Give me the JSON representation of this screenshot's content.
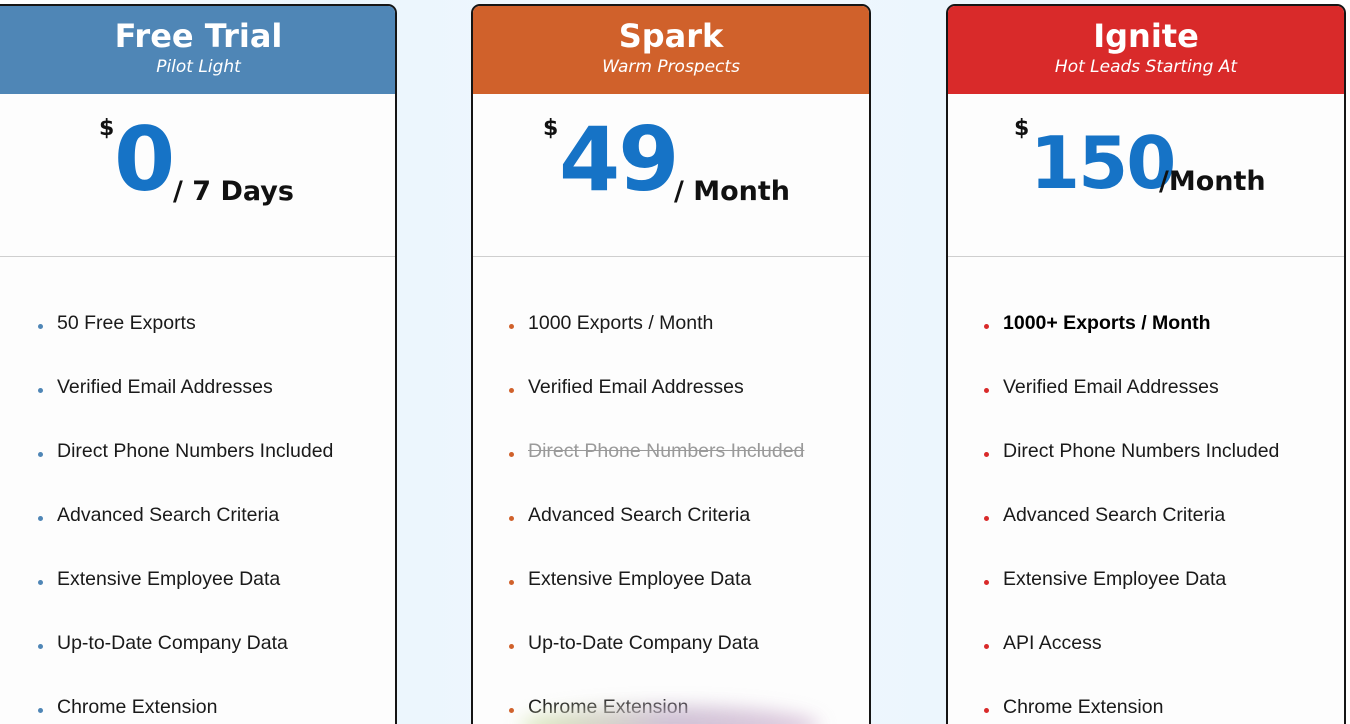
{
  "plans": [
    {
      "name": "Free Trial",
      "tagline": "Pilot Light",
      "currency": "$",
      "amount": "0",
      "period": "/ 7 Days",
      "color": "#4f86b6",
      "features": [
        {
          "text": "50 Free Exports"
        },
        {
          "text": "Verified Email Addresses"
        },
        {
          "text": "Direct Phone Numbers Included"
        },
        {
          "text": "Advanced Search Criteria"
        },
        {
          "text": "Extensive Employee Data"
        },
        {
          "text": "Up-to-Date Company Data"
        },
        {
          "text": "Chrome Extension"
        }
      ]
    },
    {
      "name": "Spark",
      "tagline": "Warm Prospects",
      "currency": "$",
      "amount": "49",
      "period": "/ Month",
      "color": "#d0612b",
      "features": [
        {
          "text": "1000 Exports / Month"
        },
        {
          "text": "Verified Email Addresses"
        },
        {
          "text": "Direct Phone Numbers Included",
          "excluded": true
        },
        {
          "text": "Advanced Search Criteria"
        },
        {
          "text": "Extensive Employee Data"
        },
        {
          "text": "Up-to-Date Company Data"
        },
        {
          "text": "Chrome Extension"
        }
      ]
    },
    {
      "name": "Ignite",
      "tagline": "Hot Leads Starting At",
      "currency": "$",
      "amount": "150",
      "period": "/Month",
      "color": "#d92a2a",
      "features": [
        {
          "text": "1000+ Exports / Month",
          "emphasis": true
        },
        {
          "text": "Verified Email Addresses"
        },
        {
          "text": "Direct Phone Numbers Included"
        },
        {
          "text": "Advanced Search Criteria"
        },
        {
          "text": "Extensive Employee Data"
        },
        {
          "text": "API Access"
        },
        {
          "text": "Chrome Extension"
        }
      ]
    }
  ],
  "colors": {
    "price_amount": "#1673c6",
    "card_border": "#151515"
  }
}
